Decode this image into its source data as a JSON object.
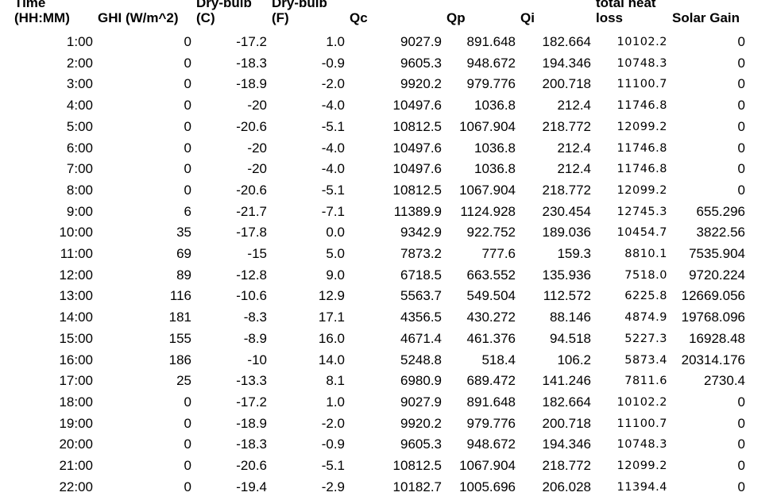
{
  "colors": {
    "text": "#000000",
    "background": "#ffffff"
  },
  "header": {
    "line1": [
      "Time",
      "",
      "Dry-bulb",
      "Dry-bulb",
      "",
      "",
      "",
      "total heat",
      ""
    ],
    "line2": [
      "(HH:MM)",
      "GHI (W/m^2)",
      "(C)",
      "(F)",
      "Qc",
      "Qp",
      "Qi",
      "loss",
      "Solar Gain"
    ]
  },
  "chart_data": {
    "type": "table",
    "columns": [
      "Time (HH:MM)",
      "GHI (W/m^2)",
      "Dry-bulb (C)",
      "Dry-bulb (F)",
      "Qc",
      "Qp",
      "Qi",
      "total heat loss",
      "Solar Gain"
    ],
    "rows": [
      [
        "1:00",
        "0",
        "-17.2",
        "1.0",
        "9027.9",
        "891.648",
        "182.664",
        "10102.2",
        "0"
      ],
      [
        "2:00",
        "0",
        "-18.3",
        "-0.9",
        "9605.3",
        "948.672",
        "194.346",
        "10748.3",
        "0"
      ],
      [
        "3:00",
        "0",
        "-18.9",
        "-2.0",
        "9920.2",
        "979.776",
        "200.718",
        "11100.7",
        "0"
      ],
      [
        "4:00",
        "0",
        "-20",
        "-4.0",
        "10497.6",
        "1036.8",
        "212.4",
        "11746.8",
        "0"
      ],
      [
        "5:00",
        "0",
        "-20.6",
        "-5.1",
        "10812.5",
        "1067.904",
        "218.772",
        "12099.2",
        "0"
      ],
      [
        "6:00",
        "0",
        "-20",
        "-4.0",
        "10497.6",
        "1036.8",
        "212.4",
        "11746.8",
        "0"
      ],
      [
        "7:00",
        "0",
        "-20",
        "-4.0",
        "10497.6",
        "1036.8",
        "212.4",
        "11746.8",
        "0"
      ],
      [
        "8:00",
        "0",
        "-20.6",
        "-5.1",
        "10812.5",
        "1067.904",
        "218.772",
        "12099.2",
        "0"
      ],
      [
        "9:00",
        "6",
        "-21.7",
        "-7.1",
        "11389.9",
        "1124.928",
        "230.454",
        "12745.3",
        "655.296"
      ],
      [
        "10:00",
        "35",
        "-17.8",
        "0.0",
        "9342.9",
        "922.752",
        "189.036",
        "10454.7",
        "3822.56"
      ],
      [
        "11:00",
        "69",
        "-15",
        "5.0",
        "7873.2",
        "777.6",
        "159.3",
        "8810.1",
        "7535.904"
      ],
      [
        "12:00",
        "89",
        "-12.8",
        "9.0",
        "6718.5",
        "663.552",
        "135.936",
        "7518.0",
        "9720.224"
      ],
      [
        "13:00",
        "116",
        "-10.6",
        "12.9",
        "5563.7",
        "549.504",
        "112.572",
        "6225.8",
        "12669.056"
      ],
      [
        "14:00",
        "181",
        "-8.3",
        "17.1",
        "4356.5",
        "430.272",
        "88.146",
        "4874.9",
        "19768.096"
      ],
      [
        "15:00",
        "155",
        "-8.9",
        "16.0",
        "4671.4",
        "461.376",
        "94.518",
        "5227.3",
        "16928.48"
      ],
      [
        "16:00",
        "186",
        "-10",
        "14.0",
        "5248.8",
        "518.4",
        "106.2",
        "5873.4",
        "20314.176"
      ],
      [
        "17:00",
        "25",
        "-13.3",
        "8.1",
        "6980.9",
        "689.472",
        "141.246",
        "7811.6",
        "2730.4"
      ],
      [
        "18:00",
        "0",
        "-17.2",
        "1.0",
        "9027.9",
        "891.648",
        "182.664",
        "10102.2",
        "0"
      ],
      [
        "19:00",
        "0",
        "-18.9",
        "-2.0",
        "9920.2",
        "979.776",
        "200.718",
        "11100.7",
        "0"
      ],
      [
        "20:00",
        "0",
        "-18.3",
        "-0.9",
        "9605.3",
        "948.672",
        "194.346",
        "10748.3",
        "0"
      ],
      [
        "21:00",
        "0",
        "-20.6",
        "-5.1",
        "10812.5",
        "1067.904",
        "218.772",
        "12099.2",
        "0"
      ],
      [
        "22:00",
        "0",
        "-19.4",
        "-2.9",
        "10182.7",
        "1005.696",
        "206.028",
        "11394.4",
        "0"
      ]
    ]
  }
}
